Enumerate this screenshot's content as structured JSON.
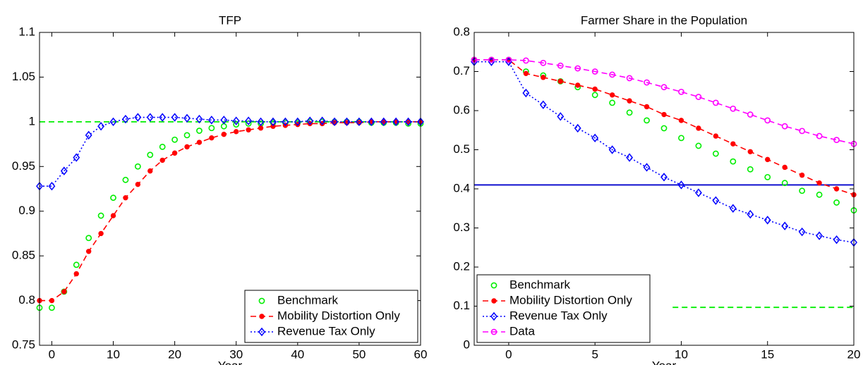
{
  "chart_data": [
    {
      "type": "line",
      "title": "TFP",
      "x_label": "Year",
      "x": [
        -2,
        0,
        2,
        4,
        6,
        8,
        10,
        12,
        14,
        16,
        18,
        20,
        22,
        24,
        26,
        28,
        30,
        32,
        34,
        36,
        38,
        40,
        42,
        44,
        46,
        48,
        50,
        52,
        54,
        56,
        58,
        60
      ],
      "xlim": [
        -2,
        60
      ],
      "xticks": [
        0,
        10,
        20,
        30,
        40,
        50,
        60
      ],
      "ylim": [
        0.75,
        1.1
      ],
      "yticks": [
        0.75,
        0.8,
        0.85,
        0.9,
        0.95,
        1,
        1.05,
        1.1
      ],
      "legend": "lower right",
      "reference_lines": [
        {
          "y": 1,
          "color": "#00ee00",
          "style": "dashed"
        }
      ],
      "series": [
        {
          "name": "Benchmark",
          "color": "#00ee00",
          "marker": "circle",
          "line": "none",
          "values": [
            0.792,
            0.792,
            0.81,
            0.84,
            0.87,
            0.895,
            0.915,
            0.935,
            0.95,
            0.963,
            0.972,
            0.98,
            0.985,
            0.99,
            0.993,
            0.995,
            0.997,
            0.998,
            0.998,
            0.999,
            0.999,
            0.999,
            1,
            1,
            1,
            1,
            1,
            0.999,
            0.999,
            0.999,
            0.998,
            0.998
          ]
        },
        {
          "name": "Mobility Distortion Only",
          "color": "#ff0000",
          "marker": "dot",
          "line": "dashed",
          "values": [
            0.8,
            0.8,
            0.81,
            0.83,
            0.855,
            0.875,
            0.895,
            0.915,
            0.93,
            0.945,
            0.957,
            0.965,
            0.972,
            0.977,
            0.982,
            0.986,
            0.989,
            0.991,
            0.993,
            0.995,
            0.996,
            0.997,
            0.998,
            0.998,
            0.999,
            0.999,
            0.999,
            1,
            1,
            1,
            1,
            1
          ]
        },
        {
          "name": "Revenue Tax Only",
          "color": "#0000ff",
          "marker": "diamond",
          "line": "dotted",
          "values": [
            0.928,
            0.928,
            0.945,
            0.96,
            0.985,
            0.995,
            1,
            1.003,
            1.005,
            1.005,
            1.005,
            1.005,
            1.004,
            1.003,
            1.002,
            1.002,
            1.001,
            1.001,
            1,
            1,
            1,
            1,
            1.001,
            1.001,
            1,
            1,
            1,
            1,
            1,
            1,
            1,
            1
          ]
        }
      ]
    },
    {
      "type": "line",
      "title": "Farmer Share in the Population",
      "x_label": "Year",
      "x": [
        -2,
        -1,
        0,
        1,
        2,
        3,
        4,
        5,
        6,
        7,
        8,
        9,
        10,
        11,
        12,
        13,
        14,
        15,
        16,
        17,
        18,
        19,
        20
      ],
      "xlim": [
        -2,
        20
      ],
      "xticks": [
        0,
        5,
        10,
        15,
        20
      ],
      "ylim": [
        0,
        0.8
      ],
      "yticks": [
        0,
        0.1,
        0.2,
        0.3,
        0.4,
        0.5,
        0.6,
        0.7,
        0.8
      ],
      "legend": "lower left",
      "reference_lines": [
        {
          "y": 0.41,
          "color": "#0000cc",
          "style": "solid"
        },
        {
          "y": 0.097,
          "x_from": 9.5,
          "color": "#00ee00",
          "style": "dashed"
        }
      ],
      "series": [
        {
          "name": "Benchmark",
          "color": "#00ee00",
          "marker": "circle",
          "line": "none",
          "values": [
            0.73,
            0.73,
            0.73,
            0.7,
            0.69,
            0.675,
            0.66,
            0.64,
            0.62,
            0.595,
            0.575,
            0.555,
            0.53,
            0.51,
            0.49,
            0.47,
            0.45,
            0.43,
            0.415,
            0.395,
            0.385,
            0.365,
            0.345
          ]
        },
        {
          "name": "Mobility Distortion Only",
          "color": "#ff0000",
          "marker": "dot",
          "line": "dashed",
          "values": [
            0.73,
            0.73,
            0.73,
            0.695,
            0.685,
            0.675,
            0.665,
            0.655,
            0.64,
            0.625,
            0.61,
            0.59,
            0.575,
            0.555,
            0.535,
            0.515,
            0.495,
            0.475,
            0.455,
            0.435,
            0.415,
            0.4,
            0.385
          ]
        },
        {
          "name": "Revenue Tax Only",
          "color": "#0000ff",
          "marker": "diamond",
          "line": "dotted",
          "values": [
            0.725,
            0.725,
            0.725,
            0.645,
            0.615,
            0.585,
            0.555,
            0.53,
            0.5,
            0.48,
            0.455,
            0.43,
            0.41,
            0.39,
            0.37,
            0.35,
            0.335,
            0.32,
            0.305,
            0.29,
            0.28,
            0.27,
            0.263
          ]
        },
        {
          "name": "Data",
          "color": "#ff00ff",
          "marker": "circle",
          "line": "dashed",
          "values": [
            0.73,
            0.73,
            0.73,
            0.728,
            0.722,
            0.715,
            0.708,
            0.7,
            0.692,
            0.683,
            0.672,
            0.66,
            0.648,
            0.635,
            0.62,
            0.605,
            0.59,
            0.575,
            0.56,
            0.548,
            0.535,
            0.525,
            0.515
          ]
        }
      ]
    }
  ]
}
